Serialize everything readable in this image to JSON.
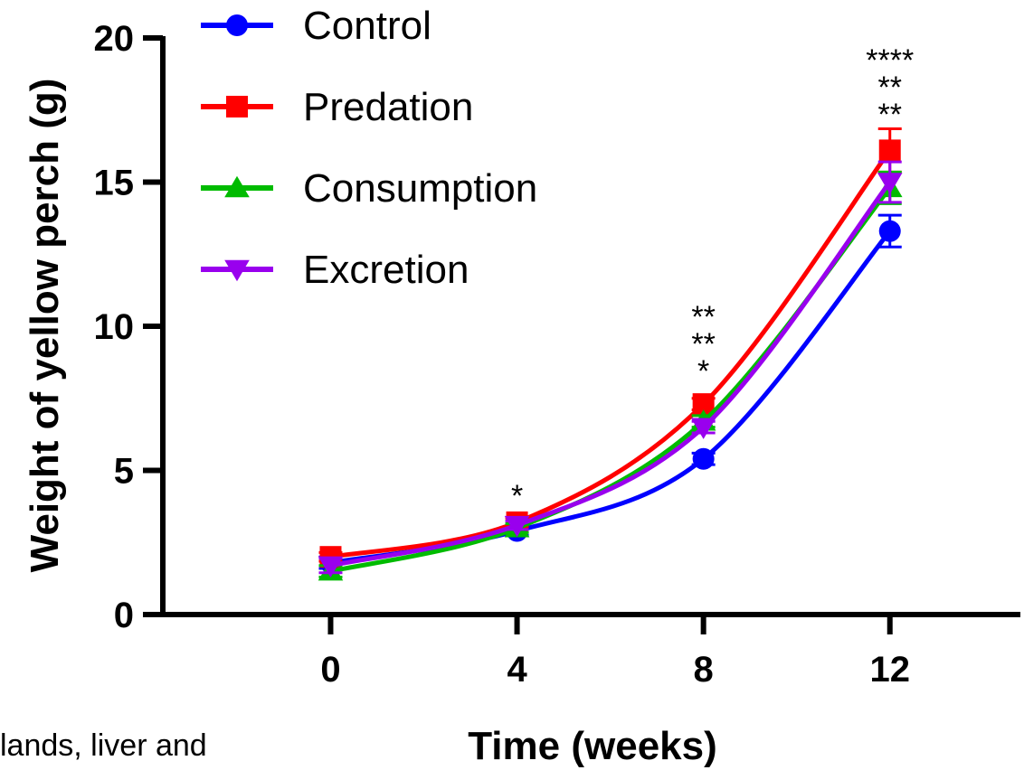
{
  "chart_data": {
    "type": "line",
    "xlabel": "Time (weeks)",
    "ylabel": "Weight of yellow perch (g)",
    "x": [
      0,
      4,
      8,
      12
    ],
    "xticks": [
      "0",
      "4",
      "8",
      "12"
    ],
    "yticks": [
      "0",
      "5",
      "10",
      "15",
      "20"
    ],
    "xlim": [
      -3.6,
      14.8
    ],
    "ylim": [
      0,
      20
    ],
    "legend_position": "top-left",
    "series": [
      {
        "name": "Control",
        "color": "#0000ff",
        "marker": "circle",
        "values": [
          1.8,
          2.9,
          5.4,
          13.3
        ],
        "errors": [
          0.2,
          0.15,
          0.2,
          0.55
        ]
      },
      {
        "name": "Predation",
        "color": "#ff0000",
        "marker": "square",
        "values": [
          2.0,
          3.2,
          7.3,
          16.1
        ],
        "errors": [
          0.15,
          0.15,
          0.2,
          0.75
        ]
      },
      {
        "name": "Consumption",
        "color": "#00bb00",
        "marker": "triangle-up",
        "values": [
          1.5,
          3.0,
          6.7,
          14.8
        ],
        "errors": [
          0.2,
          0.15,
          0.2,
          0.55
        ]
      },
      {
        "name": "Excretion",
        "color": "#9900ee",
        "marker": "triangle-down",
        "values": [
          1.7,
          3.1,
          6.5,
          15.0
        ],
        "errors": [
          0.25,
          0.15,
          0.2,
          0.7
        ]
      }
    ],
    "annotations": [
      {
        "x": 4,
        "lines": [
          "*"
        ]
      },
      {
        "x": 8,
        "lines": [
          "**",
          "**",
          "*"
        ]
      },
      {
        "x": 12,
        "lines": [
          "****",
          "**",
          "**"
        ]
      }
    ]
  },
  "cropped_text": "lands, liver and"
}
